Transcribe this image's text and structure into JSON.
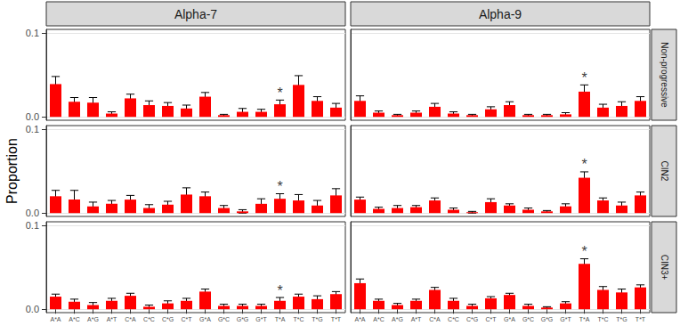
{
  "chart_data": {
    "type": "bar",
    "y_label": "Proportion",
    "color": "#ff0000",
    "grid": true,
    "ylim": [
      -0.004,
      0.104
    ],
    "yticks": [
      {
        "value": 0,
        "label": "0.0"
      },
      0.1
    ],
    "categories": [
      "A*A",
      "A*C",
      "A*G",
      "A*T",
      "C*A",
      "C*C",
      "C*G",
      "C*T",
      "G*A",
      "G*C",
      "G*G",
      "G*T",
      "T*A",
      "T*C",
      "T*G",
      "T*T"
    ],
    "columns": [
      "Alpha-7",
      "Alpha-9"
    ],
    "rows": [
      "Non-progressive",
      "CIN2",
      "CIN3+"
    ],
    "panels": [
      {
        "column": "Alpha-7",
        "row": "Non-progressive",
        "values": [
          0.039,
          0.018,
          0.017,
          0.004,
          0.022,
          0.014,
          0.013,
          0.01,
          0.024,
          0.002,
          0.006,
          0.006,
          0.015,
          0.038,
          0.019,
          0.011
        ],
        "errors": [
          0.009,
          0.005,
          0.006,
          0.002,
          0.005,
          0.005,
          0.004,
          0.004,
          0.005,
          0.001,
          0.004,
          0.003,
          0.005,
          0.011,
          0.005,
          0.005
        ],
        "annotations": [
          {
            "category": "T*A",
            "text": "*"
          }
        ]
      },
      {
        "column": "Alpha-9",
        "row": "Non-progressive",
        "values": [
          0.019,
          0.005,
          0.002,
          0.005,
          0.012,
          0.004,
          0.002,
          0.009,
          0.014,
          0.002,
          0.002,
          0.003,
          0.03,
          0.011,
          0.013,
          0.019
        ],
        "errors": [
          0.006,
          0.002,
          0.001,
          0.002,
          0.004,
          0.002,
          0.001,
          0.003,
          0.004,
          0.001,
          0.001,
          0.002,
          0.008,
          0.004,
          0.005,
          0.005
        ],
        "annotations": [
          {
            "category": "T*A",
            "text": "*"
          }
        ]
      },
      {
        "column": "Alpha-7",
        "row": "CIN2",
        "values": [
          0.02,
          0.016,
          0.008,
          0.011,
          0.016,
          0.006,
          0.01,
          0.022,
          0.02,
          0.006,
          0.002,
          0.011,
          0.017,
          0.015,
          0.009,
          0.021
        ],
        "errors": [
          0.007,
          0.011,
          0.005,
          0.004,
          0.005,
          0.004,
          0.004,
          0.008,
          0.005,
          0.003,
          0.002,
          0.006,
          0.006,
          0.007,
          0.006,
          0.008
        ],
        "annotations": [
          {
            "category": "T*A",
            "text": "*"
          }
        ]
      },
      {
        "column": "Alpha-9",
        "row": "CIN2",
        "values": [
          0.016,
          0.005,
          0.006,
          0.007,
          0.015,
          0.004,
          0.001,
          0.013,
          0.009,
          0.004,
          0.002,
          0.008,
          0.042,
          0.015,
          0.009,
          0.021
        ],
        "errors": [
          0.003,
          0.002,
          0.003,
          0.002,
          0.003,
          0.002,
          0.001,
          0.004,
          0.002,
          0.002,
          0.001,
          0.003,
          0.007,
          0.003,
          0.004,
          0.004
        ],
        "annotations": [
          {
            "category": "T*A",
            "text": "*"
          }
        ]
      },
      {
        "column": "Alpha-7",
        "row": "CIN3+",
        "values": [
          0.015,
          0.009,
          0.005,
          0.01,
          0.016,
          0.003,
          0.007,
          0.01,
          0.021,
          0.004,
          0.004,
          0.004,
          0.01,
          0.015,
          0.012,
          0.018
        ],
        "errors": [
          0.003,
          0.003,
          0.003,
          0.003,
          0.003,
          0.002,
          0.003,
          0.003,
          0.003,
          0.002,
          0.002,
          0.002,
          0.004,
          0.003,
          0.004,
          0.003
        ],
        "annotations": [
          {
            "category": "T*A",
            "text": "*"
          }
        ]
      },
      {
        "column": "Alpha-9",
        "row": "CIN3+",
        "values": [
          0.031,
          0.01,
          0.005,
          0.01,
          0.023,
          0.01,
          0.004,
          0.013,
          0.017,
          0.004,
          0.002,
          0.007,
          0.054,
          0.023,
          0.02,
          0.026
        ],
        "errors": [
          0.005,
          0.002,
          0.002,
          0.002,
          0.003,
          0.003,
          0.002,
          0.002,
          0.002,
          0.002,
          0.001,
          0.002,
          0.006,
          0.004,
          0.004,
          0.003
        ],
        "annotations": [
          {
            "category": "T*A",
            "text": "*"
          }
        ]
      }
    ]
  }
}
